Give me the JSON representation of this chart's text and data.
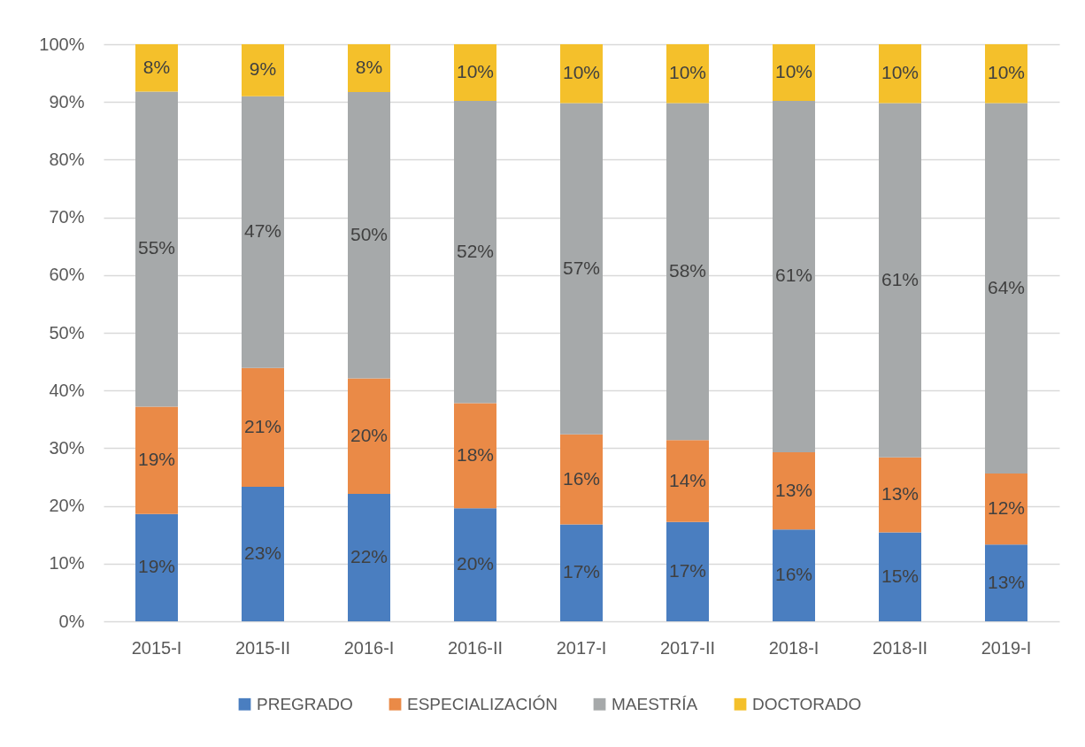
{
  "chart_data": {
    "type": "bar",
    "stacked": true,
    "categories": [
      "2015-I",
      "2015-II",
      "2016-I",
      "2016-II",
      "2017-I",
      "2017-II",
      "2018-I",
      "2018-II",
      "2019-I"
    ],
    "series": [
      {
        "name": "PREGRADO",
        "color": "#4a7ec0",
        "values": [
          18.6,
          23.3,
          22.1,
          19.6,
          16.8,
          17.2,
          15.9,
          15.4,
          13.3
        ],
        "value_labels": [
          "19%",
          "23%",
          "22%",
          "20%",
          "17%",
          "17%",
          "16%",
          "15%",
          "13%"
        ]
      },
      {
        "name": "ESPECIALIZACIÓN",
        "color": "#ea8a47",
        "values": [
          18.6,
          20.6,
          20.0,
          18.2,
          15.6,
          14.2,
          13.4,
          13.0,
          12.3
        ],
        "value_labels": [
          "19%",
          "21%",
          "20%",
          "18%",
          "16%",
          "14%",
          "13%",
          "13%",
          "12%"
        ]
      },
      {
        "name": "MAESTRÍA",
        "color": "#a6a9aa",
        "values": [
          54.6,
          47.1,
          49.6,
          52.4,
          57.4,
          58.4,
          60.9,
          61.4,
          64.2
        ],
        "value_labels": [
          "55%",
          "47%",
          "50%",
          "52%",
          "57%",
          "58%",
          "61%",
          "61%",
          "64%"
        ]
      },
      {
        "name": "DOCTORADO",
        "color": "#f4c02b",
        "values": [
          8.2,
          9.0,
          8.3,
          9.8,
          10.2,
          10.2,
          9.8,
          10.2,
          10.2
        ],
        "value_labels": [
          "8%",
          "9%",
          "8%",
          "10%",
          "10%",
          "10%",
          "10%",
          "10%",
          "10%"
        ]
      }
    ],
    "ylim": [
      0,
      100
    ],
    "yticks": [
      {
        "value": 0,
        "label": "0%"
      },
      {
        "value": 10,
        "label": "10%"
      },
      {
        "value": 20,
        "label": "20%"
      },
      {
        "value": 30,
        "label": "30%"
      },
      {
        "value": 40,
        "label": "40%"
      },
      {
        "value": 50,
        "label": "50%"
      },
      {
        "value": 60,
        "label": "60%"
      },
      {
        "value": 70,
        "label": "70%"
      },
      {
        "value": 80,
        "label": "80%"
      },
      {
        "value": 90,
        "label": "90%"
      },
      {
        "value": 100,
        "label": "100%"
      }
    ],
    "grid": "y",
    "legend": "bottom"
  }
}
